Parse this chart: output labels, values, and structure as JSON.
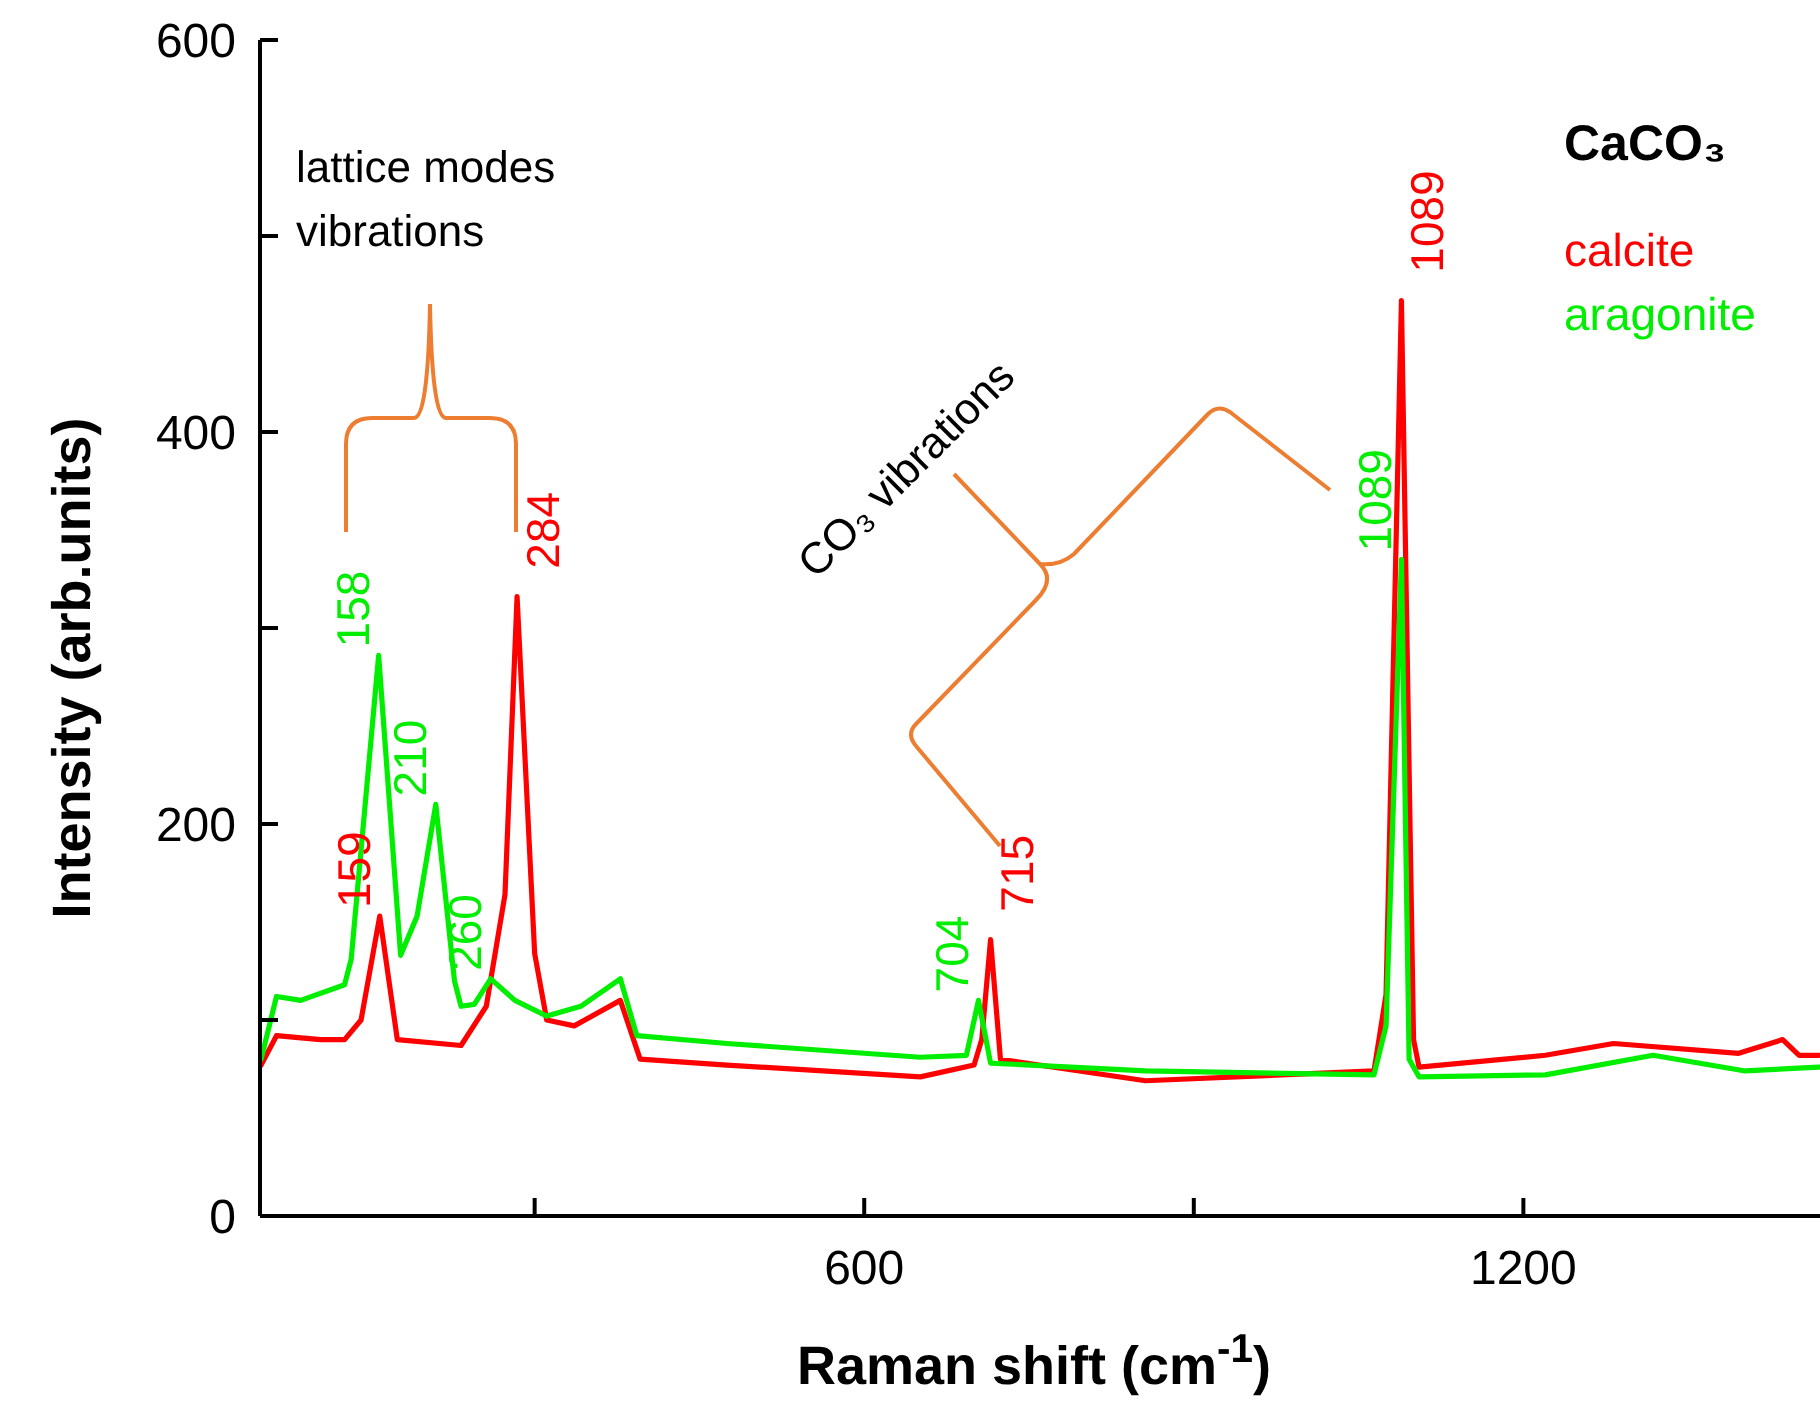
{
  "chart_data": {
    "type": "line",
    "xlabel": "Raman shift (cm$^{-1}$)",
    "ylabel": "Intensity (arb.units)",
    "legend_title": "CaCO₃",
    "legend": "top right",
    "xlim": [
      50,
      1470
    ],
    "ylim": [
      0,
      600
    ],
    "xticks": [
      {
        "value": 300,
        "label": null
      },
      600,
      {
        "value": 900,
        "label": null
      },
      1200
    ],
    "yticks": [
      0,
      {
        "value": 100,
        "label": null
      },
      200,
      {
        "value": 300,
        "label": null
      },
      400,
      {
        "value": 500,
        "label": null
      },
      600
    ],
    "annotations": [
      "lattice modes\nvibrations",
      "CO₃ vibrations",
      {
        "text": "159",
        "x": 159,
        "y": 153
      },
      {
        "text": "284",
        "x": 284,
        "y": 316
      },
      {
        "text": "715",
        "x": 715,
        "y": 141
      },
      {
        "text": "1089",
        "x": 1089,
        "y": 467
      },
      {
        "text": "158",
        "x": 158,
        "y": 286
      },
      {
        "text": "210",
        "x": 210,
        "y": 210
      },
      {
        "text": "260",
        "x": 260,
        "y": 121
      },
      {
        "text": "704",
        "x": 704,
        "y": 110
      },
      {
        "text": "1089",
        "x": 1089,
        "y": 335
      }
    ],
    "series": [
      {
        "name": "calcite",
        "color": "#ff0000",
        "x": [
          51,
          65,
          105,
          127,
          142,
          159,
          175,
          233,
          256,
          273,
          284,
          300,
          311,
          336,
          378,
          396,
          475,
          651,
          700,
          707,
          715,
          724,
          856,
          1064,
          1075,
          1089,
          1100,
          1105,
          1220,
          1282,
          1396,
          1436,
          1451,
          1469
        ],
        "values": [
          77,
          92,
          90,
          90,
          100,
          153,
          90,
          87,
          107,
          164,
          316,
          134,
          100,
          97,
          110,
          80,
          77,
          71,
          77,
          90,
          141,
          80,
          69,
          74,
          113,
          467,
          90,
          76,
          82,
          88,
          83,
          90,
          82,
          82
        ]
      },
      {
        "name": "aragonite",
        "color": "#00ee00",
        "x": [
          51,
          65,
          87,
          127,
          133,
          158,
          178,
          193,
          210,
          227,
          233,
          245,
          260,
          282,
          311,
          342,
          378,
          393,
          475,
          651,
          693,
          704,
          715,
          856,
          1064,
          1075,
          1089,
          1096,
          1105,
          1220,
          1318,
          1402,
          1469
        ],
        "values": [
          80,
          112,
          110,
          118,
          131,
          286,
          133,
          153,
          210,
          120,
          107,
          108,
          121,
          110,
          102,
          107,
          121,
          92,
          88,
          81,
          82,
          110,
          78,
          74,
          72,
          97,
          335,
          80,
          71,
          72,
          82,
          74,
          76
        ]
      }
    ]
  }
}
